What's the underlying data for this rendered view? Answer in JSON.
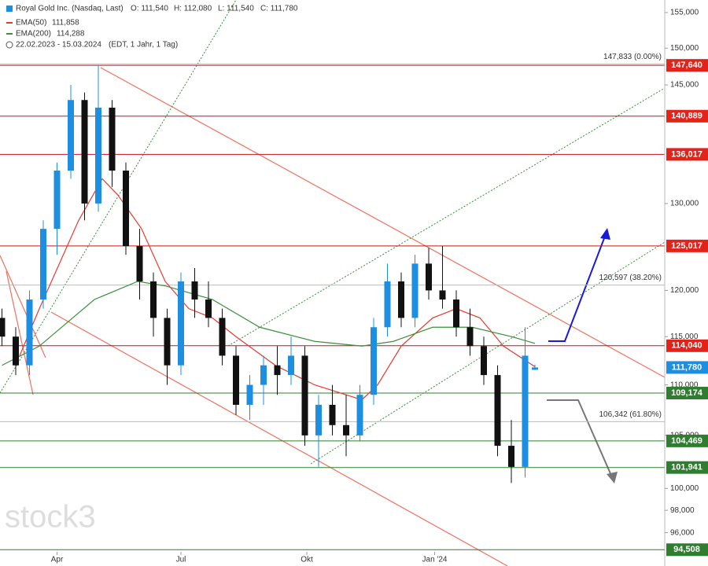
{
  "header": {
    "title": "Royal Gold Inc. (Nasdaq, Last)",
    "ohlc": [
      "O: 111,540",
      "H: 112,080",
      "L: 111,540",
      "C: 111,780"
    ],
    "period": "22.02.2023 - 15.03.2024",
    "period_note": "(EDT, 1 Jahr, 1 Tag)",
    "watermark": "stock3"
  },
  "chart_data": {
    "type": "candlestick",
    "log_scale": true,
    "up_color": "#1e8fe0",
    "down_color": "#111111",
    "ylim": [
      93100,
      156800
    ],
    "xlim": [
      -1,
      337
    ],
    "yticks": [
      {
        "value": 155000,
        "label": "155,000"
      },
      {
        "value": 150000,
        "label": "150,000"
      },
      {
        "value": 145000,
        "label": "145,000"
      },
      {
        "value": 130000,
        "label": "130,000"
      },
      {
        "value": 120000,
        "label": "120,000"
      },
      {
        "value": 115000,
        "label": "115,000"
      },
      {
        "value": 110000,
        "label": "110,000"
      },
      {
        "value": 105000,
        "label": "105,000"
      },
      {
        "value": 100000,
        "label": "100,000"
      },
      {
        "value": 98000,
        "label": "98,000"
      },
      {
        "value": 96000,
        "label": "96,000"
      }
    ],
    "xticks": [
      {
        "value": 28,
        "label": "Apr"
      },
      {
        "value": 91,
        "label": "Jul"
      },
      {
        "value": 155,
        "label": "Okt"
      },
      {
        "value": 220,
        "label": "Jan '24"
      }
    ],
    "candles": {
      "x": [
        0,
        7,
        14,
        21,
        28,
        35,
        42,
        49,
        56,
        63,
        70,
        77,
        84,
        91,
        98,
        105,
        112,
        119,
        126,
        133,
        140,
        147,
        154,
        161,
        168,
        175,
        182,
        189,
        196,
        203,
        210,
        217,
        224,
        231,
        238,
        245,
        252,
        259,
        266,
        271
      ],
      "open": [
        117000,
        115000,
        112000,
        119000,
        127000,
        134000,
        143000,
        130000,
        142000,
        134000,
        125000,
        121000,
        117000,
        112000,
        121000,
        119000,
        117000,
        113000,
        108000,
        110000,
        112000,
        111000,
        113000,
        105000,
        108000,
        106000,
        105000,
        109000,
        116000,
        121000,
        117000,
        123000,
        120000,
        119000,
        116000,
        114000,
        111000,
        104000,
        102000,
        111540
      ],
      "high": [
        118000,
        116000,
        120000,
        128000,
        135000,
        145000,
        144000,
        147640,
        143000,
        135000,
        127000,
        122000,
        118000,
        122000,
        122500,
        121000,
        118000,
        114000,
        111000,
        113000,
        114000,
        115000,
        114000,
        109000,
        110000,
        109000,
        110000,
        117000,
        123000,
        122000,
        124000,
        124800,
        125000,
        120000,
        118000,
        115000,
        112000,
        106500,
        116000,
        112080
      ],
      "low": [
        114000,
        111000,
        111000,
        118000,
        124000,
        133000,
        128000,
        129000,
        132000,
        124000,
        119000,
        115000,
        110000,
        111000,
        117000,
        116000,
        112000,
        107000,
        106500,
        108000,
        109000,
        110000,
        104000,
        102000,
        105000,
        103000,
        104500,
        108000,
        115000,
        116000,
        116000,
        119000,
        118000,
        115000,
        113000,
        110000,
        103000,
        100500,
        101000,
        111540
      ],
      "close": [
        115000,
        112000,
        119000,
        127000,
        134000,
        143000,
        130000,
        142000,
        134000,
        125000,
        121000,
        117000,
        112000,
        121000,
        119000,
        117000,
        113000,
        108000,
        110000,
        112000,
        111000,
        113000,
        105000,
        108000,
        106000,
        105000,
        109000,
        116000,
        121000,
        117000,
        123000,
        120000,
        119000,
        116000,
        114000,
        111000,
        104000,
        102000,
        113000,
        111780
      ]
    },
    "series": [
      {
        "name": "EMA(50)",
        "last_value_label": "111,858",
        "color": "#e8392f",
        "x": [
          9,
          19,
          39,
          51,
          59,
          71,
          83,
          95,
          107,
          119,
          139,
          159,
          183,
          191,
          203,
          219,
          231,
          243,
          255,
          271
        ],
        "values": [
          113000,
          118000,
          128000,
          133000,
          131000,
          127000,
          121000,
          118000,
          117000,
          115000,
          112000,
          110000,
          108500,
          110000,
          114000,
          117000,
          118000,
          117000,
          114000,
          111858
        ]
      },
      {
        "name": "EMA(200)",
        "last_value_label": "114,288",
        "color": "#3d8f3d",
        "x": [
          0,
          19,
          47,
          69,
          83,
          107,
          131,
          159,
          183,
          199,
          219,
          239,
          259,
          271
        ],
        "values": [
          112000,
          114000,
          119000,
          121000,
          120500,
          119000,
          116000,
          114500,
          114000,
          114500,
          116000,
          116000,
          115000,
          114288
        ]
      }
    ],
    "fib_levels": [
      {
        "value": 147833,
        "label": "147,833 (0.00%)"
      },
      {
        "value": 120597,
        "label": "120,597 (38.20%)"
      },
      {
        "value": 106342,
        "label": "106,342 (61.80%)"
      }
    ],
    "levels": [
      {
        "value": 147640,
        "label": "147,640",
        "color": "#c0141b",
        "box": "#e2231a"
      },
      {
        "value": 140889,
        "label": "140,889",
        "color": "#c0141b",
        "box": "#e2231a"
      },
      {
        "value": 136017,
        "label": "136,017",
        "color": "#c0141b",
        "box": "#e2231a"
      },
      {
        "value": 125017,
        "label": "125,017",
        "color": "#c0141b",
        "box": "#e2231a"
      },
      {
        "value": 114040,
        "label": "114,040",
        "color": "#c0141b",
        "box": "#e2231a"
      },
      {
        "value": 111780,
        "label": "111,780",
        "color": "none",
        "box": "#1e8fe0"
      },
      {
        "value": 109174,
        "label": "109,174",
        "color": "#2f7d2f",
        "box": "#2f7d2f"
      },
      {
        "value": 104469,
        "label": "104,469",
        "color": "#2f7d2f",
        "box": "#2f7d2f"
      },
      {
        "value": 101941,
        "label": "101,941",
        "color": "#2f7d2f",
        "box": "#2f7d2f"
      },
      {
        "value": 94508,
        "label": "94,508",
        "color": "#2f7d2f",
        "box": "#2f7d2f"
      }
    ]
  }
}
